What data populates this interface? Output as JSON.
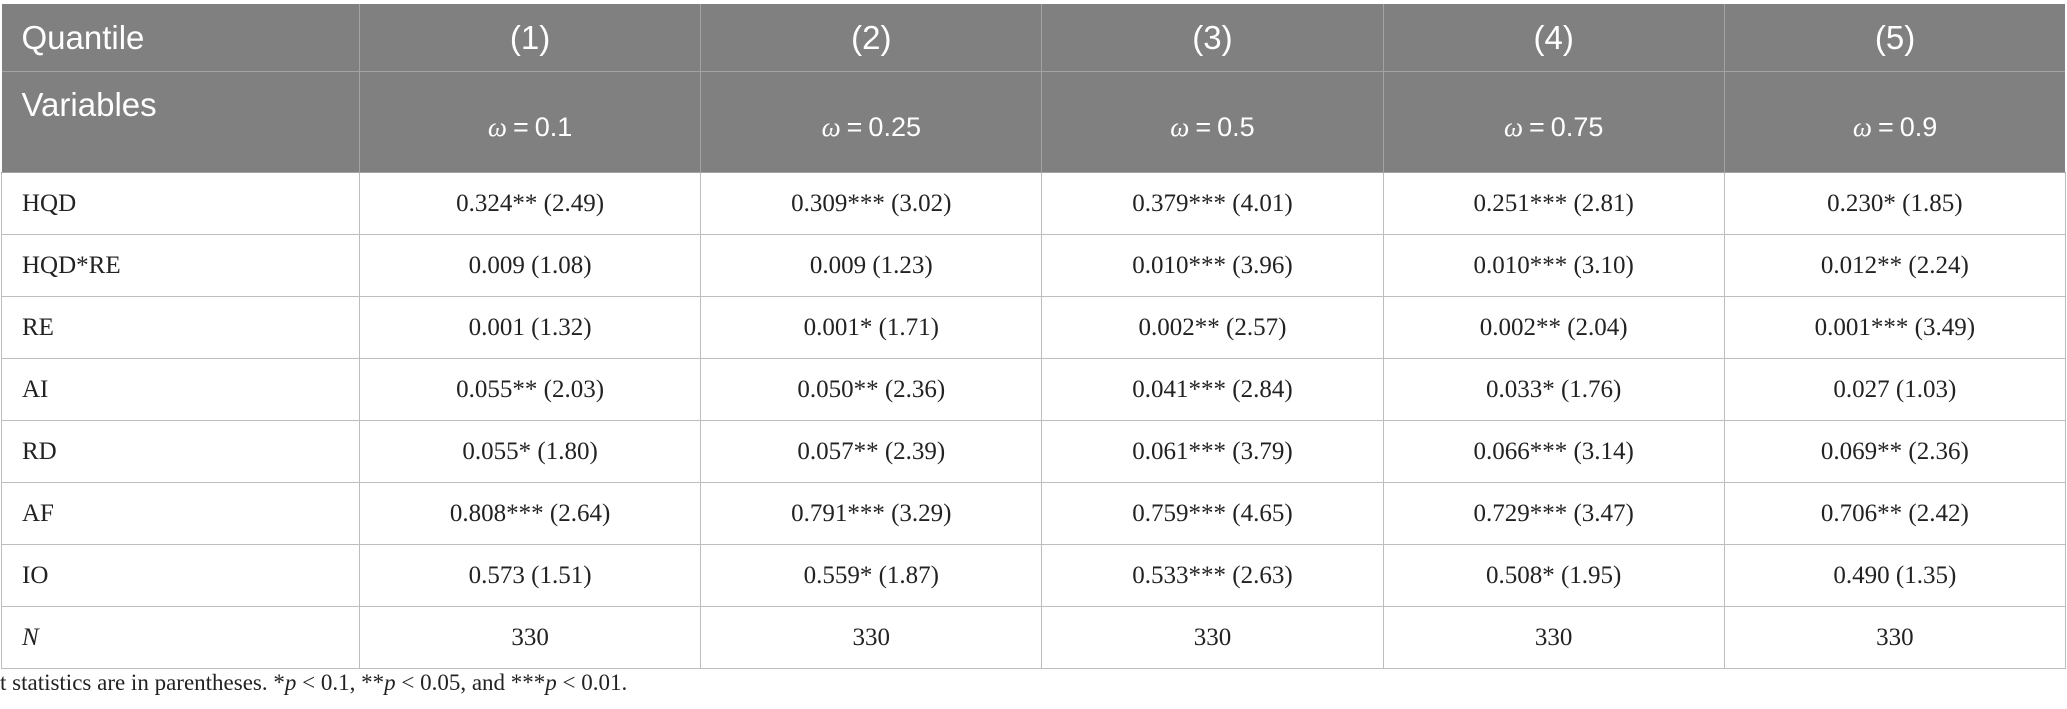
{
  "header": {
    "row1_label": "Quantile",
    "row2_label": "Variables",
    "columns": [
      {
        "num": "(1)",
        "symbol": "ω",
        "eq": "=",
        "value": "0.1"
      },
      {
        "num": "(2)",
        "symbol": "ω",
        "eq": "=",
        "value": "0.25"
      },
      {
        "num": "(3)",
        "symbol": "ω",
        "eq": "=",
        "value": "0.5"
      },
      {
        "num": "(4)",
        "symbol": "ω",
        "eq": "=",
        "value": "0.75"
      },
      {
        "num": "(5)",
        "symbol": "ω",
        "eq": "=",
        "value": "0.9"
      }
    ]
  },
  "rows": [
    {
      "variable": "HQD",
      "italic": false,
      "cells": [
        "0.324** (2.49)",
        "0.309*** (3.02)",
        "0.379*** (4.01)",
        "0.251*** (2.81)",
        "0.230* (1.85)"
      ]
    },
    {
      "variable": "HQD*RE",
      "italic": false,
      "cells": [
        "0.009 (1.08)",
        "0.009 (1.23)",
        "0.010*** (3.96)",
        "0.010*** (3.10)",
        "0.012** (2.24)"
      ]
    },
    {
      "variable": "RE",
      "italic": false,
      "cells": [
        "0.001 (1.32)",
        "0.001* (1.71)",
        "0.002** (2.57)",
        "0.002** (2.04)",
        "0.001*** (3.49)"
      ]
    },
    {
      "variable": "AI",
      "italic": false,
      "cells": [
        "0.055** (2.03)",
        "0.050** (2.36)",
        "0.041*** (2.84)",
        "0.033* (1.76)",
        "0.027 (1.03)"
      ]
    },
    {
      "variable": "RD",
      "italic": false,
      "cells": [
        "0.055* (1.80)",
        "0.057** (2.39)",
        "0.061*** (3.79)",
        "0.066*** (3.14)",
        "0.069** (2.36)"
      ]
    },
    {
      "variable": "AF",
      "italic": false,
      "cells": [
        "0.808*** (2.64)",
        "0.791*** (3.29)",
        "0.759*** (4.65)",
        "0.729*** (3.47)",
        "0.706** (2.42)"
      ]
    },
    {
      "variable": "IO",
      "italic": false,
      "cells": [
        "0.573 (1.51)",
        "0.559* (1.87)",
        "0.533*** (2.63)",
        "0.508* (1.95)",
        "0.490 (1.35)"
      ]
    },
    {
      "variable": "N",
      "italic": true,
      "cells": [
        "330",
        "330",
        "330",
        "330",
        "330"
      ]
    }
  ],
  "footnote": {
    "lead": "t statistics are in parentheses. *",
    "p1": "p",
    "t1": " < 0.1, **",
    "p2": "p",
    "t2": " < 0.05, and ***",
    "p3": "p",
    "t3": " < 0.01."
  }
}
